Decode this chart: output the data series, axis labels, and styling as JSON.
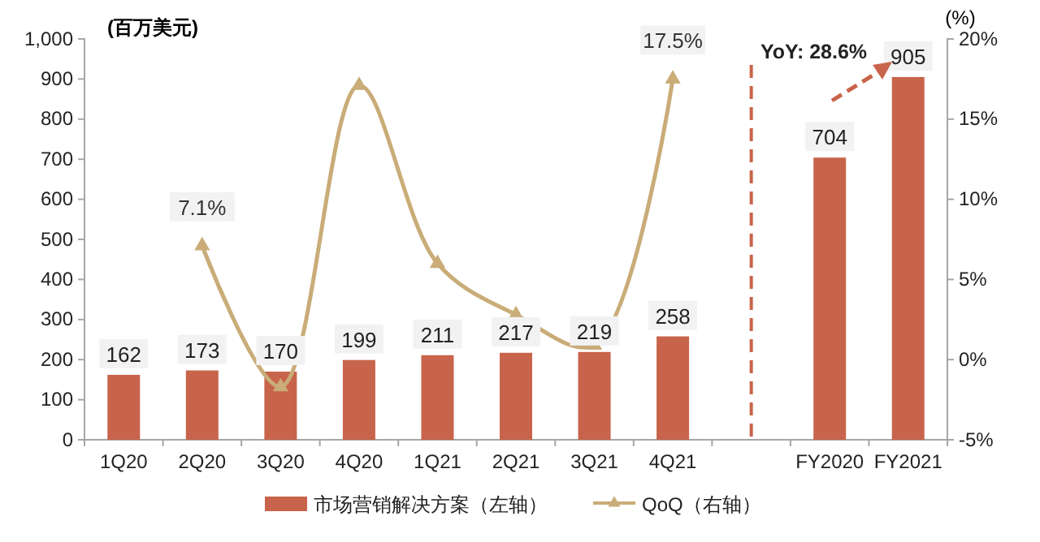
{
  "chart_data": {
    "type": "bar",
    "ylabel": "(百万美元)",
    "y2label": "(%)",
    "categories": [
      "1Q20",
      "2Q20",
      "3Q20",
      "4Q20",
      "1Q21",
      "2Q21",
      "3Q21",
      "4Q21",
      null,
      "FY2020",
      "FY2021"
    ],
    "series": [
      {
        "name": "市场营销解决方案（左轴）",
        "color": "#c8644b",
        "values": [
          162,
          173,
          170,
          199,
          211,
          217,
          219,
          258,
          null,
          704,
          905
        ],
        "value_labels": [
          "162",
          "173",
          "170",
          "199",
          "211",
          "217",
          "219",
          "258",
          null,
          "704",
          "905"
        ]
      },
      {
        "name": "QoQ（右轴）",
        "type": "line",
        "axis": "y2",
        "color": "#c9ac78",
        "marker": "triangle",
        "values": [
          null,
          7.1,
          -1.7,
          17.1,
          6.0,
          2.8,
          0.9,
          17.5,
          null,
          null,
          null
        ],
        "value_labels": [
          null,
          "7.1%",
          null,
          null,
          null,
          null,
          null,
          "17.5%",
          null,
          null,
          null
        ]
      }
    ],
    "ylim": [
      0,
      1000
    ],
    "yticks": [
      0,
      100,
      200,
      300,
      400,
      500,
      600,
      700,
      800,
      900,
      {
        "value": 1000,
        "label": "1,000"
      }
    ],
    "y2lim": [
      -5,
      20
    ],
    "y2ticks": [
      {
        "value": -5,
        "label": "-5%"
      },
      {
        "value": 0,
        "label": "0%"
      },
      {
        "value": 5,
        "label": "5%"
      },
      {
        "value": 10,
        "label": "10%"
      },
      {
        "value": 15,
        "label": "15%"
      },
      {
        "value": 20,
        "label": "20%"
      }
    ],
    "annotations": [
      "YoY: 28.6%"
    ],
    "grid": false,
    "legend": "bottom"
  }
}
